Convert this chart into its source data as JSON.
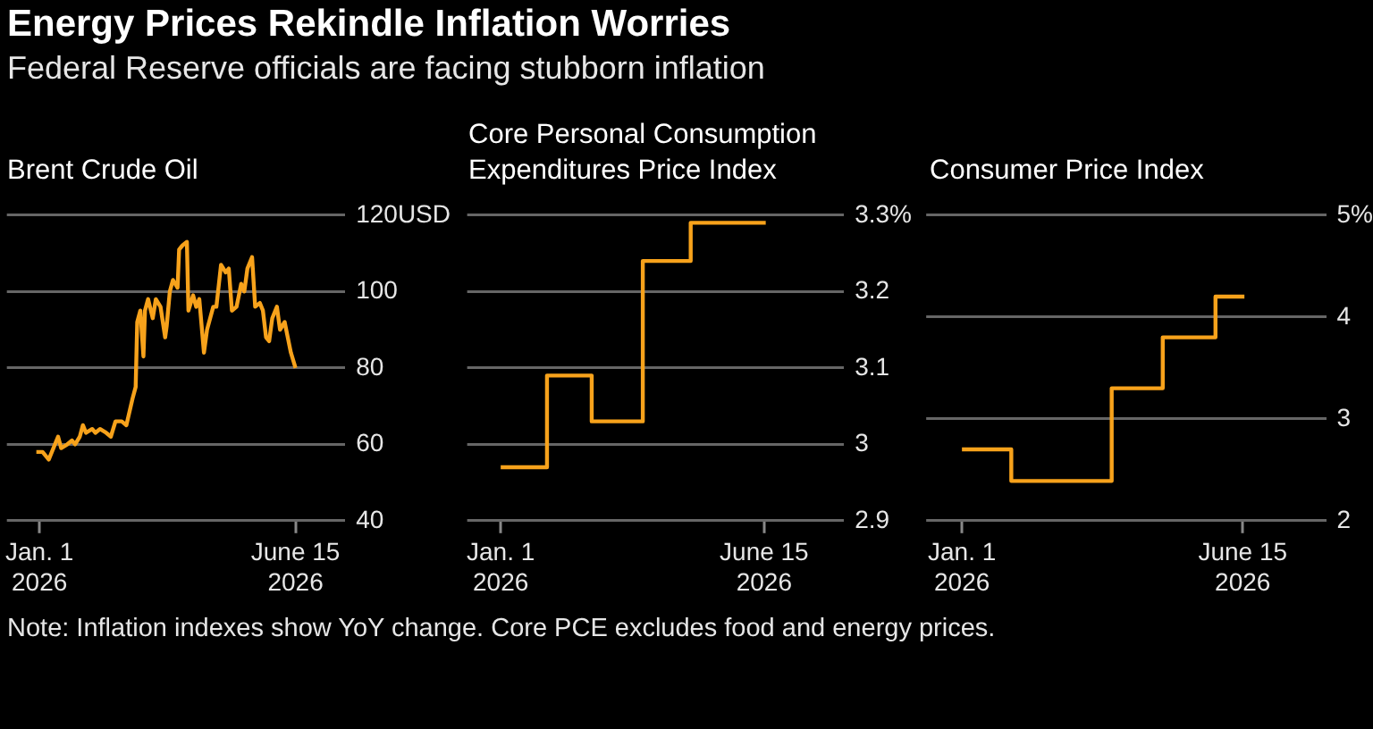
{
  "chart_data": [
    {
      "type": "other",
      "title": "Energy Prices Rekindle Inflation Worries",
      "subtitle": "Federal Reserve officials are facing stubborn inflation",
      "annotations": [
        "Note: Inflation indexes show YoY change. Core PCE excludes food and energy prices."
      ]
    },
    {
      "type": "line",
      "title": "Brent Crude Oil",
      "x": [
        "2025-12-30",
        "2026-01-03",
        "2026-01-05",
        "2026-01-07",
        "2026-01-10",
        "2026-01-13",
        "2026-01-15",
        "2026-01-19",
        "2026-01-22",
        "2026-01-24",
        "2026-01-27",
        "2026-01-29",
        "2026-01-31",
        "2026-02-04",
        "2026-02-06",
        "2026-02-09",
        "2026-02-13",
        "2026-02-16",
        "2026-02-19",
        "2026-02-23",
        "2026-02-26",
        "2026-03-02",
        "2026-03-04",
        "2026-03-05",
        "2026-03-07",
        "2026-03-09",
        "2026-03-10",
        "2026-03-12",
        "2026-03-15",
        "2026-03-17",
        "2026-03-20",
        "2026-03-23",
        "2026-03-24",
        "2026-03-26",
        "2026-03-28",
        "2026-03-31",
        "2026-04-01",
        "2026-04-03",
        "2026-04-06",
        "2026-04-07",
        "2026-04-10",
        "2026-04-12",
        "2026-04-14",
        "2026-04-17",
        "2026-04-19",
        "2026-04-23",
        "2026-04-25",
        "2026-04-28",
        "2026-05-01",
        "2026-05-03",
        "2026-05-05",
        "2026-05-08",
        "2026-05-11",
        "2026-05-13",
        "2026-05-15",
        "2026-05-18",
        "2026-05-20",
        "2026-05-23",
        "2026-05-25",
        "2026-05-27",
        "2026-05-29",
        "2026-05-31",
        "2026-06-03",
        "2026-06-05",
        "2026-06-08",
        "2026-06-10",
        "2026-06-12",
        "2026-06-15"
      ],
      "series": [
        {
          "color": "#f7a21b",
          "values": [
            58,
            58,
            57,
            56,
            59,
            62,
            59,
            60,
            61,
            60,
            62,
            65,
            63,
            64,
            63,
            64,
            63,
            62,
            66,
            66,
            65,
            72,
            75,
            92,
            95,
            83,
            95,
            98,
            93,
            98,
            96,
            88,
            91,
            100,
            103,
            101,
            111,
            112,
            113,
            95,
            99,
            96,
            98,
            84,
            90,
            96,
            96,
            107,
            105,
            106,
            95,
            96,
            102,
            100,
            106,
            109,
            96,
            97,
            95,
            88,
            87,
            93,
            96,
            90,
            92,
            88,
            84,
            80
          ]
        }
      ],
      "xlim": [
        "2025-12-11",
        "2026-07-17"
      ],
      "xticks": [
        {
          "value": "2026-01-01",
          "label": "Jan. 1\n2026"
        },
        {
          "value": "2026-06-15",
          "label": "June 15\n2026"
        }
      ],
      "ylim": [
        40,
        120
      ],
      "yticks": [
        40,
        60,
        80,
        100,
        {
          "value": 120,
          "label": "120USD"
        }
      ],
      "grid": "y"
    },
    {
      "type": "step",
      "title": "Core Personal Consumption\nExpenditures Price Index",
      "x": [
        "2026-01-01",
        "2026-01-30",
        "2026-02-27",
        "2026-03-31",
        "2026-04-30",
        "2026-06-16"
      ],
      "series": [
        {
          "color": "#f7a21b",
          "values": [
            2.97,
            3.09,
            3.03,
            3.24,
            3.29,
            3.29
          ]
        }
      ],
      "xlim": [
        "2025-12-11",
        "2026-08-04"
      ],
      "xticks": [
        {
          "value": "2026-01-01",
          "label": "Jan. 1\n2026"
        },
        {
          "value": "2026-06-15",
          "label": "June 15\n2026"
        }
      ],
      "ylim": [
        2.9,
        3.3
      ],
      "yticks": [
        2.9,
        3.0,
        3.1,
        3.2,
        {
          "value": 3.3,
          "label": "3.3%"
        }
      ],
      "grid": "y"
    },
    {
      "type": "step",
      "title": "Consumer Price Index",
      "x": [
        "2026-01-01",
        "2026-01-30",
        "2026-03-30",
        "2026-04-29",
        "2026-05-30",
        "2026-06-16"
      ],
      "series": [
        {
          "color": "#f7a21b",
          "values": [
            2.7,
            2.39,
            3.3,
            3.8,
            4.2,
            4.2
          ]
        }
      ],
      "xlim": [
        "2025-12-11",
        "2026-08-03"
      ],
      "xticks": [
        {
          "value": "2026-01-01",
          "label": "Jan. 1\n2026"
        },
        {
          "value": "2026-06-15",
          "label": "June 15\n2026"
        }
      ],
      "ylim": [
        2,
        5
      ],
      "yticks": [
        2,
        3,
        4,
        {
          "value": 5,
          "label": "5%"
        }
      ],
      "grid": "y"
    }
  ]
}
